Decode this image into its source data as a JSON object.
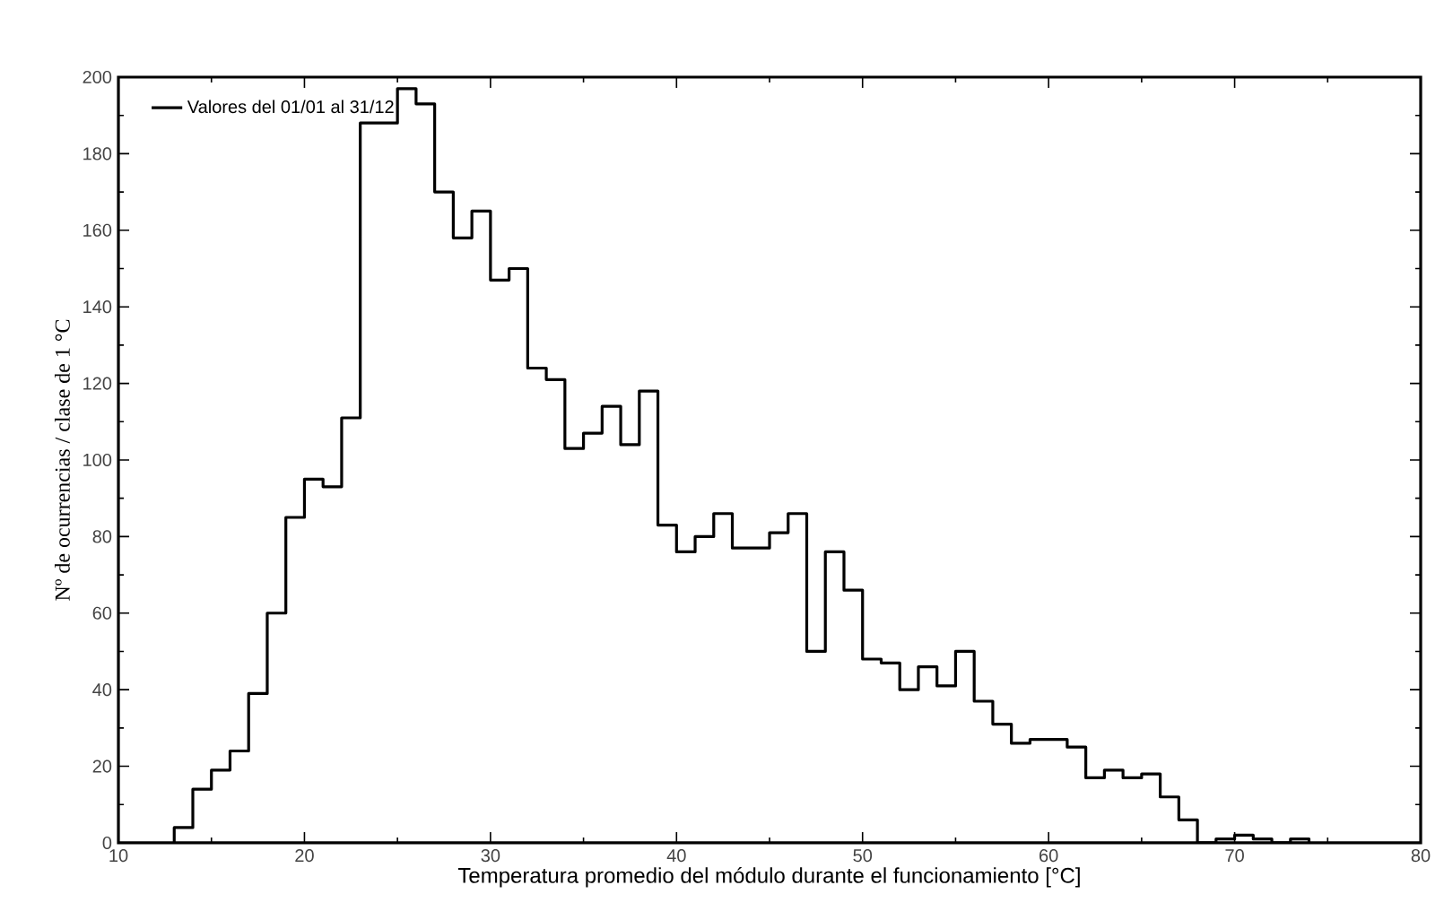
{
  "chart_data": {
    "type": "histogram",
    "xlabel": "Temperatura promedio del módulo durante el funcionamiento [°C]",
    "ylabel": "Nº de ocurrencias / clase de 1 °C",
    "bins": [
      13,
      14,
      15,
      16,
      17,
      18,
      19,
      20,
      21,
      22,
      23,
      24,
      25,
      26,
      27,
      28,
      29,
      30,
      31,
      32,
      33,
      34,
      35,
      36,
      37,
      38,
      39,
      40,
      41,
      42,
      43,
      44,
      45,
      46,
      47,
      48,
      49,
      50,
      51,
      52,
      53,
      54,
      55,
      56,
      57,
      58,
      59,
      60,
      61,
      62,
      63,
      64,
      65,
      66,
      67,
      68,
      69,
      70,
      71,
      72,
      73,
      74
    ],
    "series": [
      {
        "name": "Valores del 01/01 al 31/12",
        "color": "#000000",
        "values": [
          4,
          14,
          19,
          24,
          39,
          60,
          85,
          95,
          93,
          111,
          188,
          188,
          197,
          193,
          170,
          158,
          165,
          147,
          150,
          124,
          121,
          103,
          107,
          114,
          104,
          118,
          83,
          76,
          80,
          86,
          77,
          77,
          81,
          86,
          50,
          76,
          66,
          48,
          47,
          40,
          46,
          41,
          50,
          37,
          31,
          26,
          27,
          27,
          25,
          17,
          19,
          17,
          18,
          12,
          6,
          0,
          1,
          2,
          1,
          0,
          1
        ]
      }
    ],
    "xlim": [
      10,
      80
    ],
    "ylim": [
      0,
      200
    ],
    "xticks": [
      10,
      20,
      30,
      40,
      50,
      60,
      70,
      80
    ],
    "yticks": [
      0,
      20,
      40,
      60,
      80,
      100,
      120,
      140,
      160,
      180,
      200
    ],
    "legend": "top left"
  }
}
